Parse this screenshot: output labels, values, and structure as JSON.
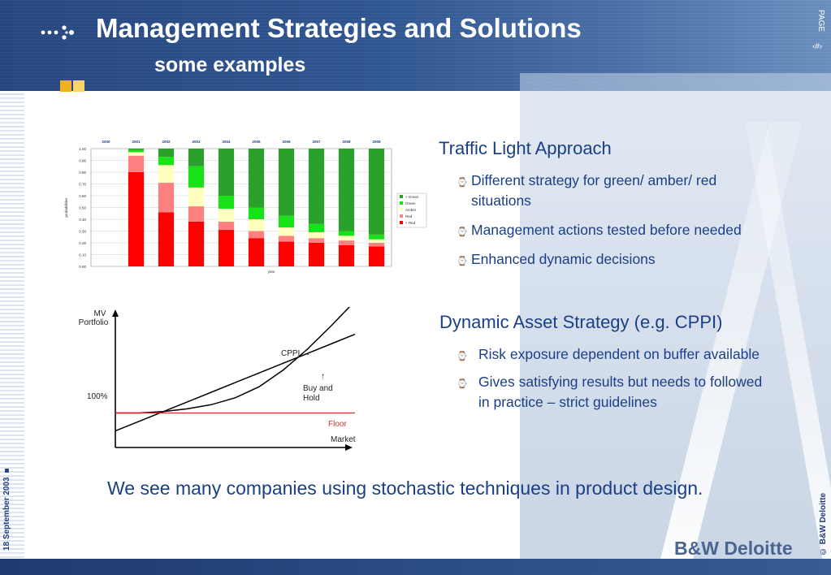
{
  "header": {
    "title": "Management Strategies and Solutions",
    "subtitle": "some examples",
    "page_label": "PAGE",
    "page_number": "‹#›"
  },
  "footer": {
    "date": "18 September 2003 ■",
    "copyright": "© B&W Deloitte",
    "brand": "B&W  Deloitte"
  },
  "colors": {
    "title_text": "#ffffff",
    "body_text": "#1b3f86",
    "header_band": "#2f5590",
    "bullet_mark": "#e6a52f",
    "green": "#2ca02c",
    "bright_green": "#19e219",
    "amber": "#ffffc0",
    "pink": "#ff8080",
    "red": "#ff0000",
    "floor": "#c0392b"
  },
  "section1": {
    "title": "Traffic Light Approach",
    "bullets": [
      {
        "mark": "⌚",
        "lines": [
          "Different strategy for green/ amber/ red",
          "situations"
        ]
      },
      {
        "mark": "⌚",
        "lines": [
          "Management actions tested before needed"
        ]
      },
      {
        "mark": "⌚",
        "lines": [
          "Enhanced dynamic decisions"
        ]
      }
    ]
  },
  "section2": {
    "title": "Dynamic Asset Strategy (e.g. CPPI)",
    "bullets": [
      {
        "mark": "⌚",
        "lines": [
          "Risk exposure dependent on buffer available"
        ]
      },
      {
        "mark": "⌚",
        "lines": [
          "Gives satisfying results but needs to followed",
          "in practice – strict guidelines"
        ]
      }
    ]
  },
  "closing": "We see many companies using stochastic techniques in product design.",
  "chart_data": [
    {
      "type": "bar",
      "stacked": true,
      "categories": [
        "2000",
        "2001",
        "2002",
        "2003",
        "2004",
        "2005",
        "2006",
        "2007",
        "2008",
        "2009"
      ],
      "xlabel": "year",
      "ylabel": "probabilities",
      "ylim": [
        0,
        1
      ],
      "y_ticks": [
        "0.00",
        "0.10",
        "0.20",
        "0.30",
        "0.40",
        "0.50",
        "0.60",
        "0.70",
        "0.80",
        "0.90",
        "1.00"
      ],
      "grid": true,
      "legend_position": "right",
      "legend": [
        "> Green",
        "Green",
        "Amber",
        "Red",
        "< Red"
      ],
      "series": [
        {
          "name": "< Red",
          "values": [
            0,
            0.8,
            0.46,
            0.38,
            0.31,
            0.24,
            0.21,
            0.2,
            0.18,
            0.17
          ]
        },
        {
          "name": "Red",
          "values": [
            0,
            0.14,
            0.25,
            0.13,
            0.07,
            0.06,
            0.05,
            0.04,
            0.04,
            0.03
          ]
        },
        {
          "name": "Amber",
          "values": [
            0,
            0.03,
            0.15,
            0.16,
            0.11,
            0.1,
            0.07,
            0.05,
            0.04,
            0.03
          ]
        },
        {
          "name": "Green",
          "values": [
            0,
            0.02,
            0.07,
            0.18,
            0.11,
            0.1,
            0.1,
            0.07,
            0.04,
            0.04
          ]
        },
        {
          "name": "> Green",
          "values": [
            0,
            0.01,
            0.07,
            0.15,
            0.4,
            0.5,
            0.57,
            0.64,
            0.7,
            0.73
          ]
        }
      ]
    },
    {
      "type": "line",
      "xlabel": "Market",
      "ylabel": "MV Portfolio",
      "y_annotation": "100%",
      "x": [
        0,
        0.1,
        0.2,
        0.3,
        0.4,
        0.5,
        0.6,
        0.7,
        0.8,
        0.9,
        1.0
      ],
      "series": [
        {
          "name": "CPPI",
          "values": [
            0.25,
            0.25,
            0.26,
            0.28,
            0.31,
            0.36,
            0.44,
            0.56,
            0.71,
            0.88,
            1.06
          ]
        },
        {
          "name": "Buy and Hold",
          "values": [
            0.12,
            0.19,
            0.26,
            0.33,
            0.4,
            0.47,
            0.54,
            0.61,
            0.68,
            0.75,
            0.82
          ]
        },
        {
          "name": "Floor",
          "values": [
            0.25,
            0.25,
            0.25,
            0.25,
            0.25,
            0.25,
            0.25,
            0.25,
            0.25,
            0.25,
            0.25
          ]
        }
      ],
      "annotations": [
        "CPPI →",
        "↑",
        "Buy and",
        "Hold",
        "Floor"
      ]
    }
  ]
}
